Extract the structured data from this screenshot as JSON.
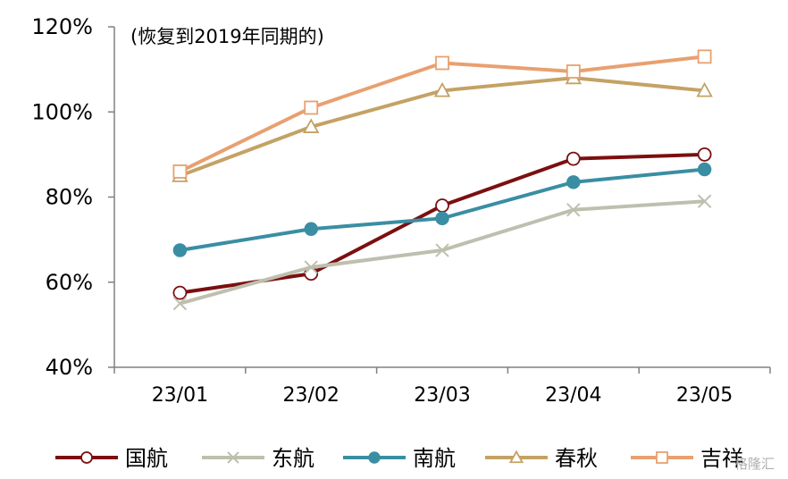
{
  "chart_data": {
    "type": "line",
    "title": "",
    "annotation": "(恢复到2019年同期的)",
    "xlabel": "",
    "ylabel": "",
    "categories": [
      "23/01",
      "23/02",
      "23/03",
      "23/04",
      "23/05"
    ],
    "ylim": [
      40,
      120
    ],
    "yticks": [
      40,
      60,
      80,
      100,
      120
    ],
    "ytick_labels": [
      "40%",
      "60%",
      "80%",
      "100%",
      "120%"
    ],
    "grid": false,
    "legend_position": "bottom",
    "series": [
      {
        "name": "国航",
        "color": "#7b0f10",
        "marker": "circle-open",
        "values": [
          57.5,
          62,
          78,
          89,
          90
        ]
      },
      {
        "name": "东航",
        "color": "#bfbfaf",
        "marker": "x",
        "values": [
          55,
          63.5,
          67.5,
          77,
          79
        ]
      },
      {
        "name": "南航",
        "color": "#3a8ea3",
        "marker": "circle-filled",
        "values": [
          67.5,
          72.5,
          75,
          83.5,
          86.5
        ]
      },
      {
        "name": "春秋",
        "color": "#c4a265",
        "marker": "triangle-open",
        "values": [
          85,
          96.5,
          105,
          108,
          105
        ]
      },
      {
        "name": "吉祥",
        "color": "#e8a070",
        "marker": "square-open",
        "values": [
          86,
          101,
          111.5,
          109.5,
          113
        ]
      }
    ]
  },
  "watermark": "格隆汇"
}
